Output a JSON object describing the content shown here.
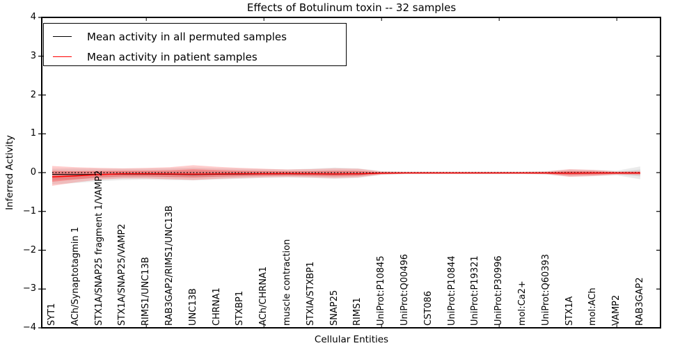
{
  "title": "Effects of Botulinum toxin -- 32 samples",
  "axes": {
    "x_label": "Cellular Entities",
    "y_label": "Inferred Activity",
    "y_tick_labels": [
      "4",
      "3",
      "2",
      "1",
      "0",
      "−1",
      "−2",
      "−3",
      "−4"
    ],
    "y_tick_values": [
      4,
      3,
      2,
      1,
      0,
      -1,
      -2,
      -3,
      -4
    ]
  },
  "legend": {
    "entries": [
      {
        "label": "Mean activity in all permuted samples",
        "color": "#000000"
      },
      {
        "label": "Mean activity in patient samples",
        "color": "#ff0000"
      }
    ]
  },
  "chart_data": {
    "type": "line",
    "title": "Effects of Botulinum toxin -- 32 samples",
    "xlabel": "Cellular Entities",
    "ylabel": "Inferred Activity",
    "ylim": [
      -4,
      4
    ],
    "grid": false,
    "legend_position": "upper left",
    "categories": [
      "SYT1",
      "ACh/Synaptotagmin 1",
      "STX1A/SNAP25 fragment 1/VAMP2",
      "STX1A/SNAP25/VAMP2",
      "RIMS1/UNC13B",
      "RAB3GAP2/RIMS1/UNC13B",
      "UNC13B",
      "CHRNA1",
      "STXBP1",
      "ACh/CHRNA1",
      "muscle contraction",
      "STXIA/STXBP1",
      "SNAP25",
      "RIMS1",
      "UniProt:P10845",
      "UniProt:Q00496",
      "CST086",
      "UniProt:P10844",
      "UniProt:P19321",
      "UniProt:P30996",
      "mol:Ca2+",
      "UniProt:Q60393",
      "STX1A",
      "mol:ACh",
      "VAMP2",
      "RAB3GAP2"
    ],
    "reference_line": {
      "name": "zero-reference",
      "style": "dotted",
      "color": "#000000",
      "value": 0
    },
    "series": [
      {
        "name": "Mean activity in all permuted samples",
        "color": "#000000",
        "style": "solid",
        "values": [
          -0.045,
          -0.05,
          -0.045,
          -0.04,
          -0.04,
          -0.045,
          -0.05,
          -0.045,
          -0.04,
          -0.035,
          -0.03,
          -0.035,
          -0.04,
          -0.035,
          -0.015,
          -0.01,
          -0.01,
          -0.01,
          -0.01,
          -0.01,
          -0.01,
          -0.01,
          -0.015,
          -0.01,
          -0.01,
          -0.01
        ]
      },
      {
        "name": "Mean activity in patient samples",
        "color": "#ff0000",
        "style": "solid",
        "values": [
          -0.11,
          -0.085,
          -0.05,
          -0.03,
          -0.03,
          -0.035,
          -0.04,
          -0.035,
          -0.03,
          -0.03,
          -0.025,
          -0.03,
          -0.035,
          -0.03,
          -0.015,
          -0.01,
          -0.01,
          -0.01,
          -0.01,
          -0.01,
          -0.01,
          -0.01,
          -0.015,
          -0.01,
          -0.01,
          -0.01
        ]
      }
    ],
    "bands": [
      {
        "name": "permuted-samples-spread",
        "color": "#808080",
        "opacity_outer": 0.16,
        "opacity_inner": 0.14,
        "mean_ref": 0,
        "upper": [
          0.1,
          0.11,
          0.1,
          0.1,
          0.1,
          0.11,
          0.13,
          0.11,
          0.1,
          0.09,
          0.08,
          0.1,
          0.13,
          0.11,
          0.04,
          0.03,
          0.03,
          0.03,
          0.03,
          0.03,
          0.03,
          0.04,
          0.08,
          0.07,
          0.05,
          0.16
        ],
        "lower": [
          -0.3,
          -0.27,
          -0.22,
          -0.19,
          -0.18,
          -0.19,
          -0.2,
          -0.18,
          -0.16,
          -0.14,
          -0.13,
          -0.14,
          -0.16,
          -0.14,
          -0.06,
          -0.04,
          -0.04,
          -0.04,
          -0.04,
          -0.04,
          -0.04,
          -0.05,
          -0.1,
          -0.09,
          -0.07,
          -0.17
        ]
      },
      {
        "name": "patient-samples-spread",
        "color": "#ff0000",
        "opacity_outer": 0.2,
        "opacity_inner": 0.25,
        "mean_ref": 1,
        "upper": [
          0.17,
          0.14,
          0.12,
          0.11,
          0.12,
          0.14,
          0.19,
          0.15,
          0.12,
          0.1,
          0.08,
          0.09,
          0.11,
          0.1,
          0.03,
          0.02,
          0.02,
          0.02,
          0.02,
          0.02,
          0.02,
          0.03,
          0.09,
          0.07,
          0.03,
          0.04
        ],
        "lower": [
          -0.34,
          -0.25,
          -0.18,
          -0.15,
          -0.15,
          -0.17,
          -0.19,
          -0.16,
          -0.14,
          -0.12,
          -0.11,
          -0.12,
          -0.14,
          -0.12,
          -0.05,
          -0.03,
          -0.03,
          -0.03,
          -0.03,
          -0.03,
          -0.03,
          -0.04,
          -0.11,
          -0.09,
          -0.05,
          -0.06
        ]
      }
    ]
  }
}
